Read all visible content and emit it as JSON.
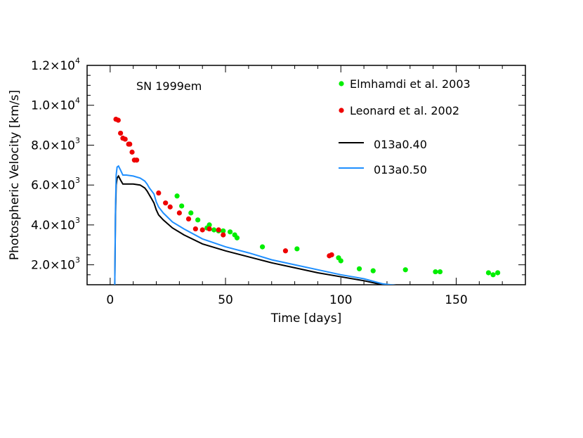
{
  "chart_data": {
    "type": "scatter",
    "title": "",
    "annotation": "SN 1999em",
    "xlabel": "Time [days]",
    "ylabel": "Photospheric Velocity [km/s]",
    "xlim": [
      -10,
      180
    ],
    "ylim": [
      1000,
      12000
    ],
    "grid": false,
    "legend_position": "top-right",
    "x_ticks": [
      0,
      50,
      100,
      150
    ],
    "x_tick_labels": [
      "0",
      "50",
      "100",
      "150"
    ],
    "y_ticks": [
      2000,
      4000,
      6000,
      8000,
      10000,
      12000
    ],
    "y_tick_labels": [
      {
        "mantissa": "2.0×10",
        "exp": "3"
      },
      {
        "mantissa": "4.0×10",
        "exp": "3"
      },
      {
        "mantissa": "6.0×10",
        "exp": "3"
      },
      {
        "mantissa": "8.0×10",
        "exp": "3"
      },
      {
        "mantissa": "1.0×10",
        "exp": "4"
      },
      {
        "mantissa": "1.2×10",
        "exp": "4"
      }
    ],
    "series": [
      {
        "name": "Elmhamdi et al. 2003",
        "kind": "points",
        "color": "#00ee00",
        "x": [
          29,
          31,
          35,
          38,
          42,
          43,
          45,
          47,
          49,
          52,
          54,
          55,
          66,
          81,
          99,
          100,
          108,
          114,
          128,
          141,
          143,
          164,
          166,
          168
        ],
        "y": [
          5450,
          4950,
          4600,
          4250,
          3850,
          4000,
          3750,
          3700,
          3700,
          3650,
          3500,
          3350,
          2900,
          2800,
          2350,
          2200,
          1800,
          1700,
          1750,
          1650,
          1650,
          1600,
          1500,
          1600
        ]
      },
      {
        "name": "Leonard et al. 2002",
        "kind": "points",
        "color": "#ee0000",
        "x": [
          2.5,
          3.5,
          4.5,
          5.5,
          6.5,
          8,
          8.5,
          9.5,
          10.5,
          11.5,
          21,
          24,
          26,
          30,
          34,
          37,
          40,
          43,
          47,
          49,
          76,
          95,
          96
        ],
        "y": [
          9300,
          9250,
          8600,
          8350,
          8300,
          8050,
          8050,
          7650,
          7250,
          7250,
          5600,
          5100,
          4900,
          4600,
          4300,
          3800,
          3750,
          3800,
          3750,
          3500,
          2700,
          2450,
          2500
        ]
      },
      {
        "name": "013a0.40",
        "kind": "line",
        "color": "#000000",
        "x": [
          2,
          2.3,
          2.6,
          3,
          3.6,
          4.5,
          5.5,
          7,
          10,
          13,
          15,
          16,
          17,
          18,
          19,
          20,
          21,
          23,
          27,
          32,
          40,
          50,
          60,
          70,
          80,
          90,
          100,
          110,
          118,
          125,
          130
        ],
        "y": [
          1000,
          4500,
          6000,
          6350,
          6450,
          6250,
          6050,
          6050,
          6050,
          6000,
          5850,
          5700,
          5500,
          5300,
          5100,
          4750,
          4500,
          4250,
          3850,
          3500,
          3050,
          2700,
          2400,
          2100,
          1850,
          1600,
          1400,
          1200,
          1000,
          900,
          850
        ]
      },
      {
        "name": "013a0.50",
        "kind": "line",
        "color": "#1f8fff",
        "x": [
          2,
          2.3,
          2.6,
          3,
          3.6,
          4.5,
          5.5,
          7,
          10,
          13,
          15,
          16,
          17,
          18,
          19,
          20,
          21,
          23,
          27,
          32,
          40,
          50,
          60,
          70,
          80,
          90,
          100,
          110,
          118,
          125,
          130
        ],
        "y": [
          1000,
          4800,
          6500,
          6900,
          6950,
          6750,
          6500,
          6500,
          6450,
          6350,
          6200,
          6050,
          5850,
          5700,
          5550,
          5150,
          4900,
          4600,
          4150,
          3800,
          3300,
          2900,
          2600,
          2250,
          2000,
          1750,
          1500,
          1300,
          1050,
          950,
          900
        ]
      }
    ]
  }
}
